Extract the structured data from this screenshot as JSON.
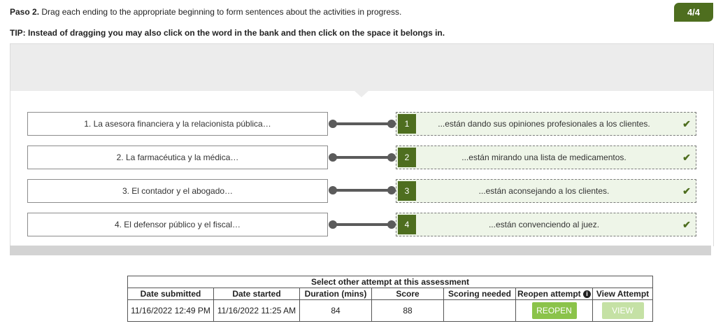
{
  "instructions": {
    "step": "Paso 2.",
    "text": "Drag each ending to the appropriate beginning to form sentences about the activities in progress.",
    "tip": "TIP: Instead of dragging you may also click on the word in the bank and then click on the space it belongs in."
  },
  "progress": "4/4",
  "pairs": [
    {
      "prompt": "1. La asesora financiera y la relacionista pública…",
      "number": "1",
      "answer": "...están dando sus opiniones profesionales a los clientes.",
      "check": "✔"
    },
    {
      "prompt": "2. La farmacéutica y la médica…",
      "number": "2",
      "answer": "...están mirando una lista de medicamentos.",
      "check": "✔"
    },
    {
      "prompt": "3. El contador y el abogado…",
      "number": "3",
      "answer": "...están aconsejando a los clientes.",
      "check": "✔"
    },
    {
      "prompt": "4. El defensor público y el fiscal…",
      "number": "4",
      "answer": "...están convenciendo al juez.",
      "check": "✔"
    }
  ],
  "attempts": {
    "title": "Select other attempt at this assessment",
    "headers": [
      "Date submitted",
      "Date started",
      "Duration (mins)",
      "Score",
      "Scoring needed",
      "Reopen  attempt",
      "View Attempt"
    ],
    "row": {
      "date_submitted": "11/16/2022 12:49 PM",
      "date_started": "11/16/2022 11:25 AM",
      "duration": "84",
      "score": "88",
      "scoring_needed": "",
      "reopen_label": "REOPEN",
      "view_label": "VIEW"
    }
  },
  "colors": {
    "accent": "#4e6e1f",
    "answer_bg": "#eef5e8",
    "button_green": "#8bc34a",
    "button_disabled": "#c5e1a5"
  },
  "icons": {
    "check": "checkmark-icon",
    "info": "info-icon"
  }
}
